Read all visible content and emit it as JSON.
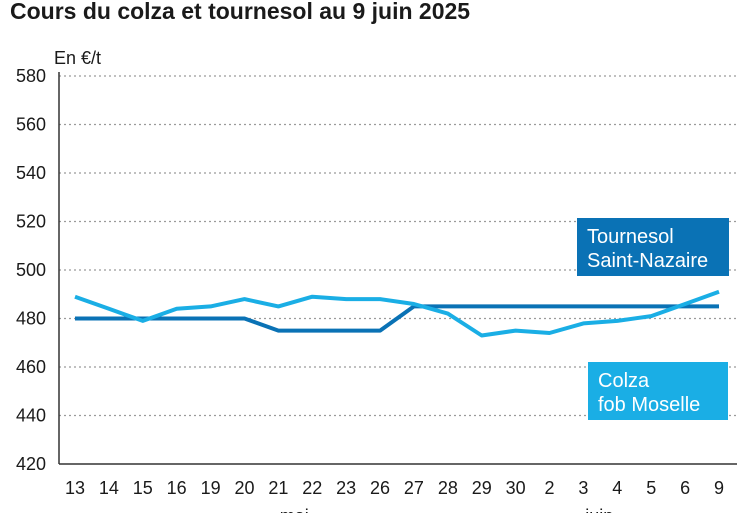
{
  "chart_data": {
    "type": "line",
    "title": "Cours du colza et tournesol au 9 juin 2025",
    "ylabel": "En €/t",
    "xlabel": "",
    "ylim": [
      420,
      580
    ],
    "yticks": [
      420,
      440,
      460,
      480,
      500,
      520,
      540,
      560,
      580
    ],
    "grid": "horizontal dotted",
    "categories": [
      "13",
      "14",
      "15",
      "16",
      "19",
      "20",
      "21",
      "22",
      "23",
      "26",
      "27",
      "28",
      "29",
      "30",
      "2",
      "3",
      "4",
      "5",
      "6",
      "9"
    ],
    "months": [
      {
        "label": "mai",
        "index": 7
      },
      {
        "label": "juin",
        "index": 16
      }
    ],
    "colors": {
      "tournesol": "#0a72b5",
      "colza": "#1aaee5",
      "axis": "#333333",
      "grid": "#9a9a9a"
    },
    "series": [
      {
        "key": "tournesol",
        "legend": [
          "Tournesol",
          "Saint-Nazaire"
        ],
        "values": [
          480,
          480,
          480,
          480,
          480,
          480,
          475,
          475,
          475,
          475,
          485,
          485,
          485,
          485,
          485,
          485,
          485,
          485,
          485,
          485
        ]
      },
      {
        "key": "colza",
        "legend": [
          "Colza",
          "fob Moselle"
        ],
        "values": [
          489,
          484,
          479,
          484,
          485,
          488,
          485,
          489,
          488,
          488,
          486,
          482,
          473,
          475,
          474,
          478,
          479,
          481,
          486,
          491
        ]
      }
    ]
  }
}
